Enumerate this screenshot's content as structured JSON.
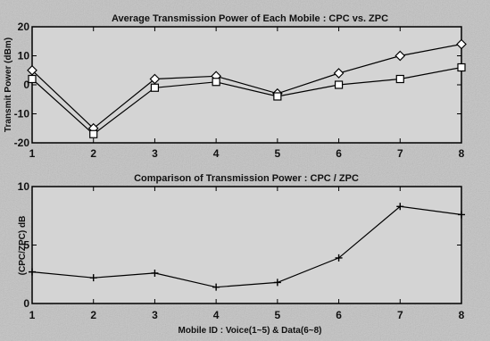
{
  "chart_data": [
    {
      "type": "line",
      "title": "Average Transmission Power of Each Mobile : CPC vs. ZPC",
      "xlabel": "",
      "ylabel": "Transmit Power (dBm)",
      "x": [
        1,
        2,
        3,
        4,
        5,
        6,
        7,
        8
      ],
      "xlim": [
        1,
        8
      ],
      "ylim": [
        -20,
        20
      ],
      "xticks": [
        1,
        2,
        3,
        4,
        5,
        6,
        7,
        8
      ],
      "yticks": [
        -20,
        -10,
        0,
        10,
        20
      ],
      "grid": false,
      "series": [
        {
          "marker": "diamond",
          "values": [
            5,
            -15,
            2,
            3,
            -3,
            4,
            10,
            14
          ]
        },
        {
          "marker": "square",
          "values": [
            2,
            -17,
            -1,
            1,
            -4,
            0,
            2,
            6
          ]
        }
      ]
    },
    {
      "type": "line",
      "title": "Comparison of Transmission Power : CPC / ZPC",
      "xlabel": "Mobile ID : Voice(1~5) & Data(6~8)",
      "ylabel": "(CPC/ZPC) dB",
      "x": [
        1,
        2,
        3,
        4,
        5,
        6,
        7,
        8
      ],
      "xlim": [
        1,
        8
      ],
      "ylim": [
        0,
        10
      ],
      "xticks": [
        1,
        2,
        3,
        4,
        5,
        6,
        7,
        8
      ],
      "yticks": [
        0,
        5,
        10
      ],
      "grid": false,
      "series": [
        {
          "marker": "plus",
          "values": [
            2.7,
            2.2,
            2.6,
            1.4,
            1.8,
            3.9,
            8.3,
            7.6
          ]
        }
      ]
    }
  ]
}
